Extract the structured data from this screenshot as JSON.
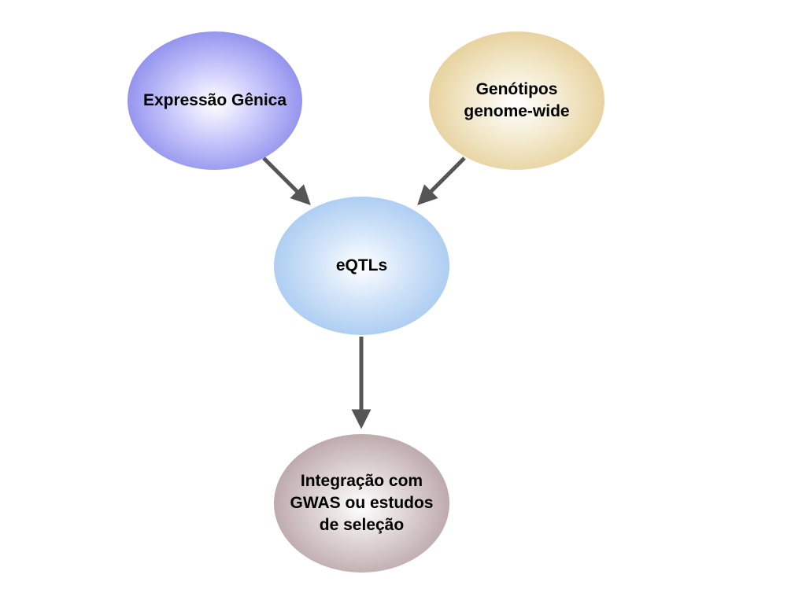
{
  "diagram": {
    "nodes": {
      "expression": {
        "label": "Expressão Gênica",
        "color": "#8585e8"
      },
      "genotypes": {
        "label": "Genótipos\ngenome-wide",
        "color": "#e2c88a"
      },
      "eqtls": {
        "label": "eQTLs",
        "color": "#a4c6f0"
      },
      "integration": {
        "label": "Integração com\nGWAS ou estudos\nde seleção",
        "color": "#b09a9c"
      }
    },
    "edges": [
      {
        "from": "expression",
        "to": "eqtls"
      },
      {
        "from": "genotypes",
        "to": "eqtls"
      },
      {
        "from": "eqtls",
        "to": "integration"
      }
    ],
    "arrow_color": "#555555"
  }
}
